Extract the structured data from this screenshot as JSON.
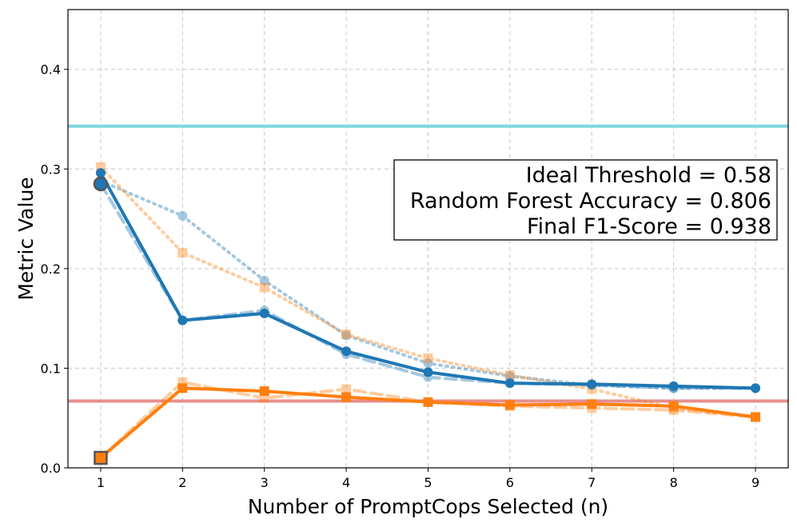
{
  "chart_data": {
    "type": "line",
    "xlabel": "Number of PromptCops Selected (n)",
    "ylabel": "Metric Value",
    "xlim": [
      0.6,
      9.4
    ],
    "ylim": [
      0,
      0.46
    ],
    "x_ticks": [
      1,
      2,
      3,
      4,
      5,
      6,
      7,
      8,
      9
    ],
    "y_ticks": [
      0.0,
      0.1,
      0.2,
      0.3,
      0.4
    ],
    "grid": true,
    "x": [
      1,
      2,
      3,
      4,
      5,
      6,
      7,
      8,
      9
    ],
    "series": [
      {
        "color": "#1f77b4",
        "linestyle": "dotted",
        "marker": "circle",
        "opacity": 0.4,
        "values": [
          0.288,
          0.253,
          0.188,
          0.133,
          0.105,
          0.092,
          0.083,
          0.08,
          0.08
        ]
      },
      {
        "color": "#1f77b4",
        "linestyle": "dashed",
        "marker": "circle",
        "opacity": 0.4,
        "values": [
          0.285,
          0.148,
          0.158,
          0.114,
          0.091,
          0.085,
          0.083,
          0.08,
          0.08
        ]
      },
      {
        "color": "#ff7f0e",
        "linestyle": "dotted",
        "marker": "square",
        "opacity": 0.4,
        "values": [
          0.302,
          0.216,
          0.181,
          0.134,
          0.11,
          0.093,
          0.079,
          0.06,
          0.051
        ]
      },
      {
        "color": "#ff7f0e",
        "linestyle": "dashed",
        "marker": "square",
        "opacity": 0.4,
        "values": [
          0.01,
          0.086,
          0.07,
          0.079,
          0.066,
          0.062,
          0.06,
          0.058,
          0.051
        ]
      },
      {
        "color": "#1f77b4",
        "linestyle": "solid",
        "marker": "circle",
        "opacity": 1,
        "values": [
          0.296,
          0.148,
          0.155,
          0.117,
          0.096,
          0.085,
          0.084,
          0.082,
          0.08
        ]
      },
      {
        "color": "#ff7f0e",
        "linestyle": "solid",
        "marker": "square",
        "opacity": 1,
        "values": [
          0.01,
          0.08,
          0.077,
          0.071,
          0.066,
          0.063,
          0.064,
          0.062,
          0.051
        ]
      }
    ],
    "highlight_points": [
      {
        "x": 1,
        "y": 0.285,
        "marker": "circle",
        "color": "#1f77b4"
      },
      {
        "x": 1,
        "y": 0.01,
        "marker": "square",
        "color": "#ff7f0e"
      }
    ],
    "hlines": [
      {
        "y": 0.343,
        "color": "#7fd6e0"
      },
      {
        "y": 0.067,
        "color": "#e88e8e"
      }
    ],
    "annotation": {
      "lines": [
        "Ideal Threshold = 0.58",
        "Random Forest Accuracy = 0.806",
        "Final F1-Score = 0.938"
      ],
      "placement": "right"
    }
  }
}
